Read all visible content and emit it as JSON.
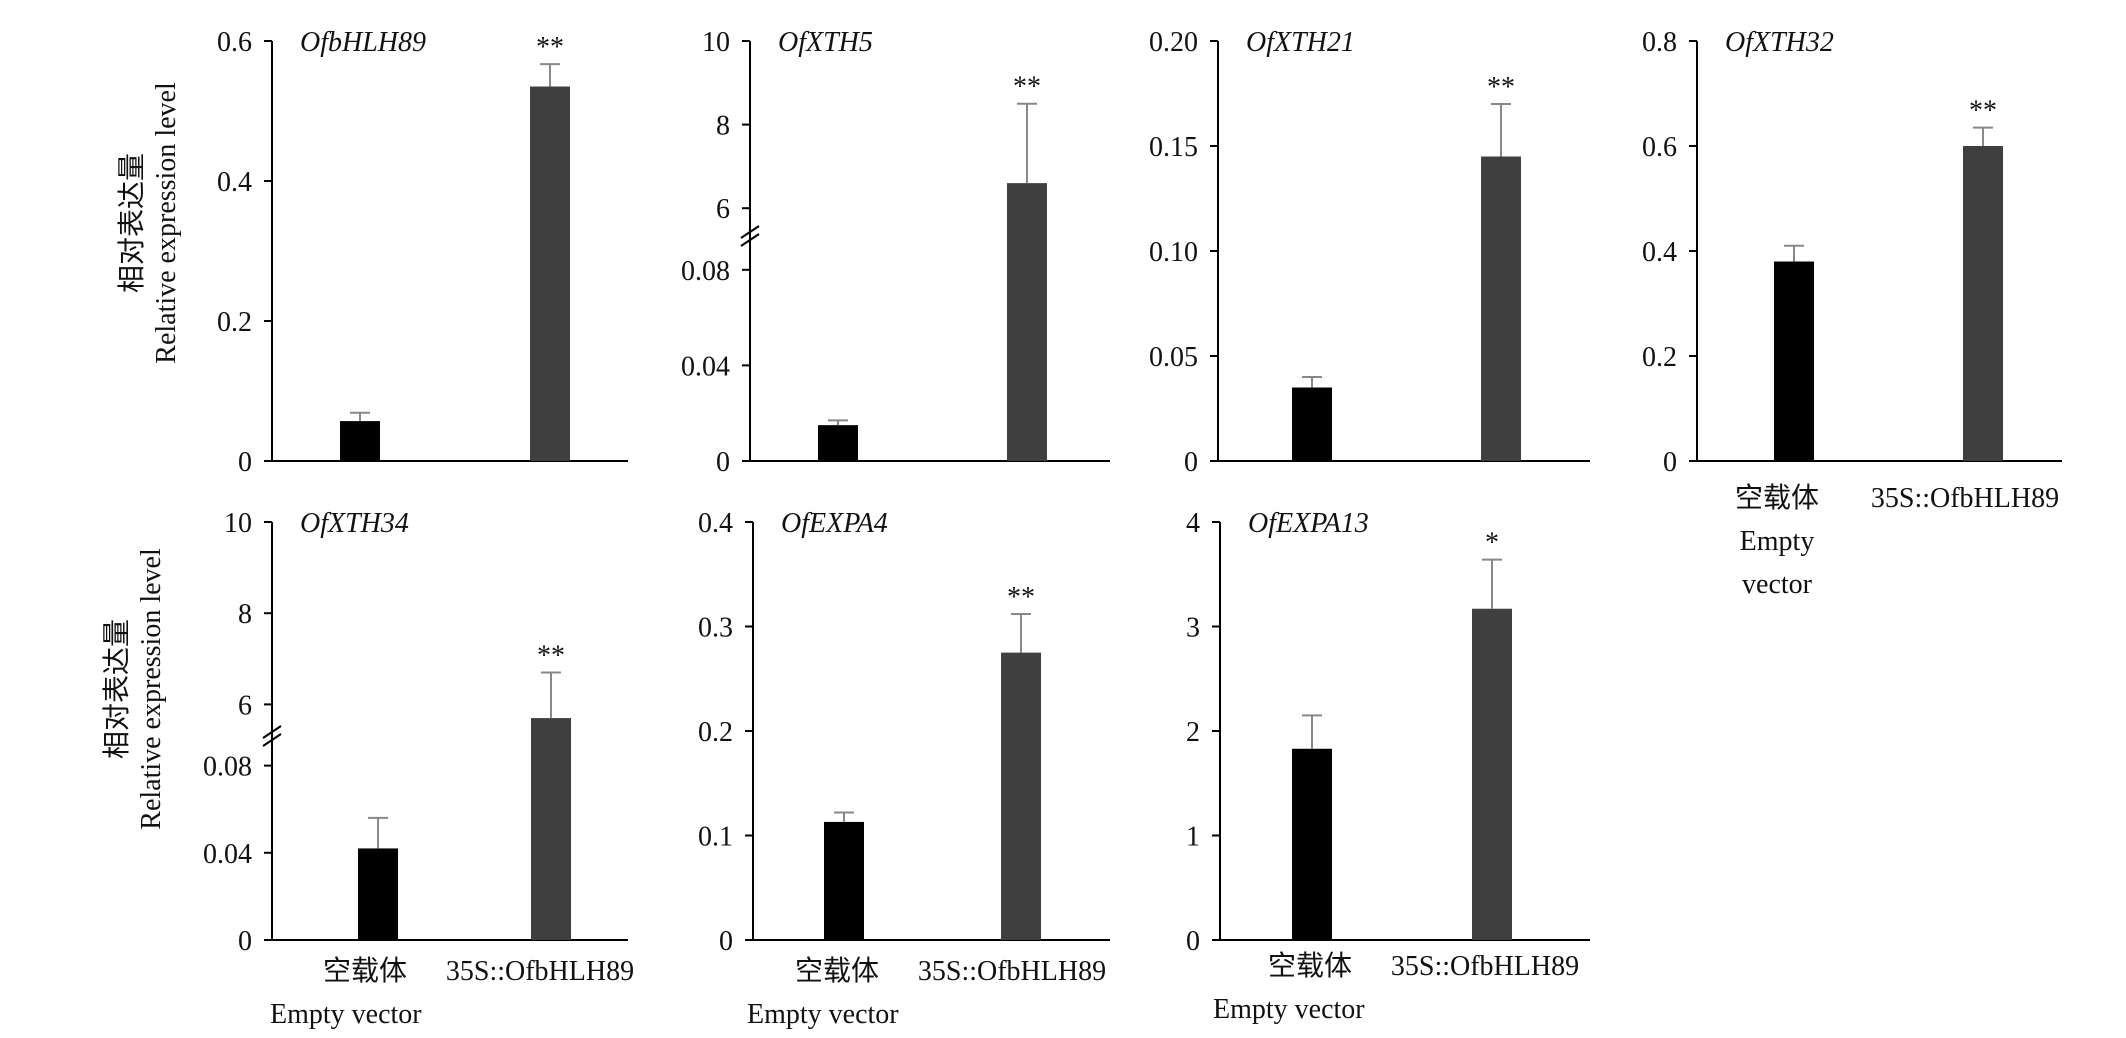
{
  "y_axis_title": {
    "cn": "相对表达量",
    "en": "Relative expression level"
  },
  "categories": {
    "empty_vector_cn": "空载体",
    "empty_vector_en": "Empty vector",
    "empty_vector_en_line1": "Empty",
    "empty_vector_en_line2": "vector",
    "overexpression": "35S::OfbHLH89"
  },
  "colors": {
    "empty_vector": "#000000",
    "overexpression": "#3f3f3f",
    "error_bar": "#888888"
  },
  "chart_data": [
    {
      "type": "bar",
      "title": "OfbHLH89",
      "categories": [
        "空载体 Empty vector",
        "35S::OfbHLH89"
      ],
      "values": [
        0.057,
        0.535
      ],
      "errors": [
        0.012,
        0.032
      ],
      "significance": [
        "",
        "**"
      ],
      "ylim": [
        0,
        0.6
      ],
      "yticks": [
        0,
        0.2,
        0.4,
        0.6
      ],
      "yticklabels": [
        "0",
        "0.2",
        "0.4",
        "0.6"
      ]
    },
    {
      "type": "bar",
      "title": "OfXTH5",
      "categories": [
        "空载体 Empty vector",
        "35S::OfbHLH89"
      ],
      "values": [
        0.015,
        6.6
      ],
      "errors": [
        0.002,
        1.9
      ],
      "significance": [
        "",
        "**"
      ],
      "axis_break": true,
      "ylim_lower": [
        0,
        0.1
      ],
      "ylim_upper": [
        5,
        10
      ],
      "yticks": [
        0,
        0.04,
        0.08,
        6,
        8,
        10
      ],
      "yticklabels": [
        "0",
        "0.04",
        "0.08",
        "6",
        "8",
        "10"
      ]
    },
    {
      "type": "bar",
      "title": "OfXTH21",
      "categories": [
        "空载体 Empty vector",
        "35S::OfbHLH89"
      ],
      "values": [
        0.035,
        0.145
      ],
      "errors": [
        0.005,
        0.025
      ],
      "significance": [
        "",
        "**"
      ],
      "ylim": [
        0,
        0.2
      ],
      "yticks": [
        0,
        0.05,
        0.1,
        0.15,
        0.2
      ],
      "yticklabels": [
        "0",
        "0.05",
        "0.10",
        "0.15",
        "0.20"
      ]
    },
    {
      "type": "bar",
      "title": "OfXTH32",
      "categories": [
        "空载体 Empty vector",
        "35S::OfbHLH89"
      ],
      "values": [
        0.38,
        0.6
      ],
      "errors": [
        0.03,
        0.035
      ],
      "significance": [
        "",
        "**"
      ],
      "ylim": [
        0,
        0.8
      ],
      "yticks": [
        0,
        0.2,
        0.4,
        0.6,
        0.8
      ],
      "yticklabels": [
        "0",
        "0.2",
        "0.4",
        "0.6",
        "0.8"
      ]
    },
    {
      "type": "bar",
      "title": "OfXTH34",
      "categories": [
        "空载体 Empty vector",
        "35S::OfbHLH89"
      ],
      "values": [
        0.042,
        5.7
      ],
      "errors": [
        0.014,
        1.0
      ],
      "significance": [
        "",
        "**"
      ],
      "axis_break": true,
      "ylim_lower": [
        0,
        0.1
      ],
      "ylim_upper": [
        5,
        10
      ],
      "yticks": [
        0,
        0.04,
        0.08,
        6,
        8,
        10
      ],
      "yticklabels": [
        "0",
        "0.04",
        "0.08",
        "6",
        "8",
        "10"
      ]
    },
    {
      "type": "bar",
      "title": "OfEXPA4",
      "categories": [
        "空载体 Empty vector",
        "35S::OfbHLH89"
      ],
      "values": [
        0.113,
        0.275
      ],
      "errors": [
        0.009,
        0.037
      ],
      "significance": [
        "",
        "**"
      ],
      "ylim": [
        0,
        0.4
      ],
      "yticks": [
        0,
        0.1,
        0.2,
        0.3,
        0.4
      ],
      "yticklabels": [
        "0",
        "0.1",
        "0.2",
        "0.3",
        "0.4"
      ]
    },
    {
      "type": "bar",
      "title": "OfEXPA13",
      "categories": [
        "空载体 Empty vector",
        "35S::OfbHLH89"
      ],
      "values": [
        1.83,
        3.17
      ],
      "errors": [
        0.32,
        0.47
      ],
      "significance": [
        "",
        "*"
      ],
      "ylim": [
        0,
        4
      ],
      "yticks": [
        0,
        1,
        2,
        3,
        4
      ],
      "yticklabels": [
        "0",
        "1",
        "2",
        "3",
        "4"
      ]
    }
  ]
}
